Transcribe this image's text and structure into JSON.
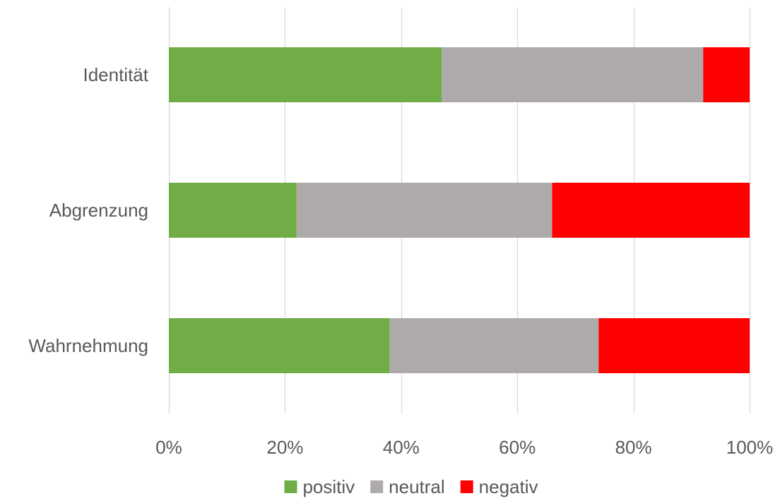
{
  "chart_data": {
    "type": "bar",
    "orientation": "horizontal",
    "stacked": "percent",
    "categories": [
      "Identität",
      "Abgrenzung",
      "Wahrnehmung"
    ],
    "series": [
      {
        "name": "positiv",
        "values": [
          47,
          22,
          38
        ],
        "color": "#70ad47"
      },
      {
        "name": "neutral",
        "values": [
          45,
          44,
          36
        ],
        "color": "#aeaaaa"
      },
      {
        "name": "negativ",
        "values": [
          8,
          34,
          26
        ],
        "color": "#ff0000"
      }
    ],
    "xlim": [
      0,
      100
    ],
    "xticks": [
      "0%",
      "20%",
      "40%",
      "60%",
      "80%",
      "100%"
    ],
    "grid": true,
    "legend_position": "bottom",
    "title": "",
    "xlabel": "",
    "ylabel": ""
  }
}
